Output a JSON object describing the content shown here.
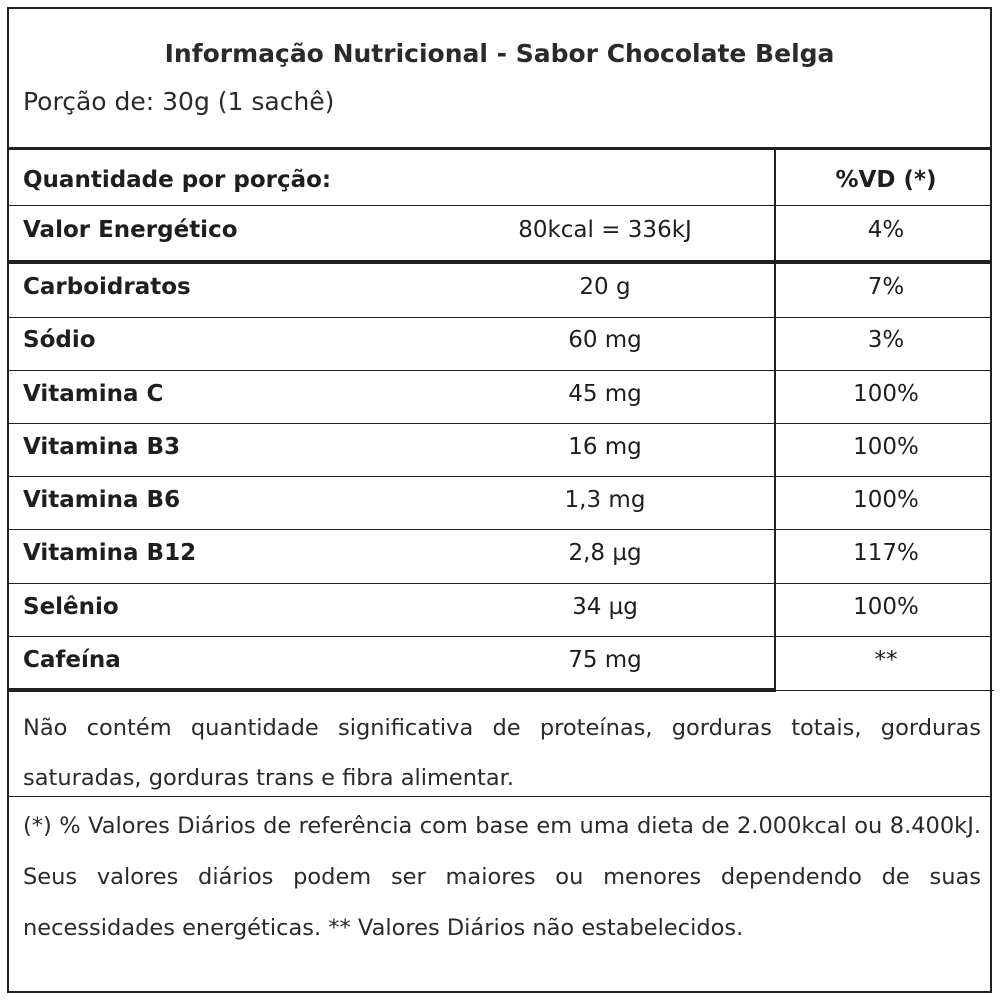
{
  "label": {
    "title": "Informação Nutricional - Sabor Chocolate Belga",
    "portion": "Porção de: 30g (1 sachê)",
    "header": {
      "quantity_label": "Quantidade por porção:",
      "vd_label": "%VD (*)"
    },
    "energy": {
      "name": "Valor Energético",
      "amount": "80kcal = 336kJ",
      "vd": "4%"
    },
    "rows": [
      {
        "name": "Carboidratos",
        "amount": "20 g",
        "vd": "7%"
      },
      {
        "name": "Sódio",
        "amount": "60 mg",
        "vd": "3%"
      },
      {
        "name": "Vitamina C",
        "amount": "45 mg",
        "vd": "100%"
      },
      {
        "name": "Vitamina B3",
        "amount": "16 mg",
        "vd": "100%"
      },
      {
        "name": "Vitamina B6",
        "amount": "1,3 mg",
        "vd": "100%"
      },
      {
        "name": "Vitamina B12",
        "amount": "2,8 µg",
        "vd": "117%"
      },
      {
        "name": "Selênio",
        "amount": "34 µg",
        "vd": "100%"
      },
      {
        "name": "Cafeína",
        "amount": "75 mg",
        "vd": "**"
      }
    ],
    "notes": {
      "insignificant": "Não contém quantidade significativa de proteínas, gorduras totais, gorduras saturadas, gorduras trans e fibra alimentar.",
      "reference": "(*) % Valores Diários de referência com base em uma dieta de 2.000kcal ou 8.400kJ. Seus valores diários podem ser maiores ou menores dependendo de suas necessidades energéticas. ** Valores Diários não estabelecidos."
    }
  }
}
